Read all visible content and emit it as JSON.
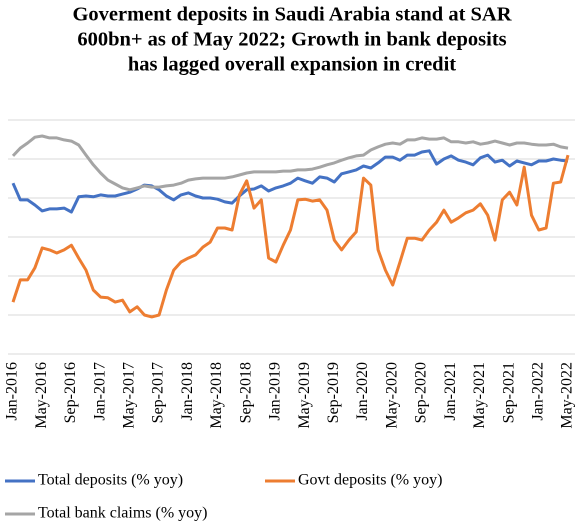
{
  "chart_data": {
    "type": "line",
    "title": [
      "Goverment deposits in Saudi Arabia stand at SAR",
      "600bn+ as of May 2022; Growth in bank deposits",
      "has lagged overall expansion in credit"
    ],
    "categories": [
      "Jan-2016",
      null,
      null,
      null,
      "May-2016",
      null,
      null,
      null,
      "Sep-2016",
      null,
      null,
      null,
      "Jan-2017",
      null,
      null,
      null,
      "May-2017",
      null,
      null,
      null,
      "Sep-2017",
      null,
      null,
      null,
      "Jan-2018",
      null,
      null,
      null,
      "May-2018",
      null,
      null,
      null,
      "Sep-2018",
      null,
      null,
      null,
      "Jan-2019",
      null,
      null,
      null,
      "May-2019",
      null,
      null,
      null,
      "Sep-2019",
      null,
      null,
      null,
      "Jan-2020",
      null,
      null,
      null,
      "May-2020",
      null,
      null,
      null,
      "Sep-2020",
      null,
      null,
      null,
      "Jan-2021",
      null,
      null,
      null,
      "May-2021",
      null,
      null,
      null,
      "Sep-2021",
      null,
      null,
      null,
      "Jan-2022",
      null,
      null,
      null,
      "May-2022"
    ],
    "series": [
      {
        "name": "Total deposits (% yoy)",
        "color": "#4472c4",
        "values": [
          3.8,
          -0.5,
          -0.5,
          -1.8,
          -3.3,
          -2.8,
          -2.8,
          -2.6,
          -3.6,
          0.3,
          0.5,
          0.3,
          0.8,
          0.5,
          0.5,
          1.0,
          1.5,
          2.3,
          3.3,
          3.1,
          2.1,
          0.5,
          -0.5,
          0.8,
          1.3,
          0.5,
          0,
          0,
          -0.3,
          -1.0,
          -1.3,
          0.5,
          2.1,
          2.3,
          3.1,
          1.8,
          2.6,
          3.1,
          3.8,
          5.1,
          4.4,
          3.8,
          5.4,
          5.1,
          4.1,
          6.2,
          6.7,
          7.2,
          8.2,
          7.7,
          9.0,
          10.5,
          10.5,
          9.7,
          11.0,
          11.0,
          11.8,
          12.1,
          8.7,
          10.0,
          10.8,
          9.7,
          9.2,
          8.5,
          10.3,
          11.0,
          9.2,
          9.7,
          8.2,
          9.5,
          9.0,
          8.5,
          9.5,
          9.5,
          10.0,
          9.7,
          9.5
        ]
      },
      {
        "name": "Govt deposits (% yoy)",
        "color": "#ed7d31",
        "values": [
          -26.7,
          -21,
          -21,
          -17.9,
          -12.8,
          -13.3,
          -14.1,
          -13.3,
          -12.1,
          -15.4,
          -18.5,
          -23.6,
          -25.4,
          -25.6,
          -26.7,
          -26.2,
          -29.2,
          -27.9,
          -30,
          -30.5,
          -30,
          -23.6,
          -18.5,
          -16.4,
          -15.4,
          -14.6,
          -12.6,
          -11.3,
          -7.7,
          -7.7,
          -8.2,
          0.8,
          4.4,
          -2.6,
          -0.5,
          -15.4,
          -16.4,
          -12.1,
          -8.2,
          -0.5,
          -0.3,
          -0.8,
          -0.5,
          -3.1,
          -10.8,
          -13.3,
          -10.8,
          -8.7,
          5.1,
          3.3,
          -13.3,
          -18.5,
          -22.3,
          -16.4,
          -10.3,
          -10.3,
          -10.8,
          -8.2,
          -6.2,
          -3.1,
          -6.2,
          -5.1,
          -3.8,
          -3.1,
          -1.5,
          -4.4,
          -10.8,
          -0.5,
          1.5,
          -1.8,
          7.9,
          -4.4,
          -8.2,
          -7.7,
          3.8,
          4.1,
          11.0
        ]
      },
      {
        "name": "Total bank claims (% yoy)",
        "color": "#a5a5a5",
        "values": [
          10.8,
          12.8,
          14.1,
          15.6,
          15.9,
          15.4,
          15.4,
          14.9,
          14.6,
          13.6,
          11.0,
          8.5,
          6.4,
          4.6,
          3.6,
          2.6,
          2.1,
          2.6,
          3.1,
          2.8,
          2.8,
          3.1,
          3.3,
          3.8,
          4.6,
          4.9,
          5.1,
          5.1,
          5.1,
          5.1,
          5.4,
          5.9,
          6.4,
          6.7,
          6.7,
          6.7,
          6.7,
          6.9,
          6.9,
          7.2,
          7.2,
          7.4,
          7.9,
          8.5,
          9.0,
          9.7,
          10.3,
          10.8,
          11.0,
          12.3,
          13.1,
          13.8,
          14.1,
          13.8,
          14.9,
          14.9,
          15.4,
          15.1,
          15.1,
          15.4,
          14.4,
          14.4,
          14.1,
          14.4,
          13.8,
          14.1,
          14.6,
          14.1,
          13.6,
          14.1,
          14.1,
          13.8,
          13.6,
          13.6,
          13.8,
          13.1,
          12.8
        ]
      }
    ],
    "ylim": [
      -40,
      20
    ],
    "yticks": [
      -40,
      -30,
      -20,
      -10,
      0,
      10,
      20
    ],
    "grid": true
  }
}
